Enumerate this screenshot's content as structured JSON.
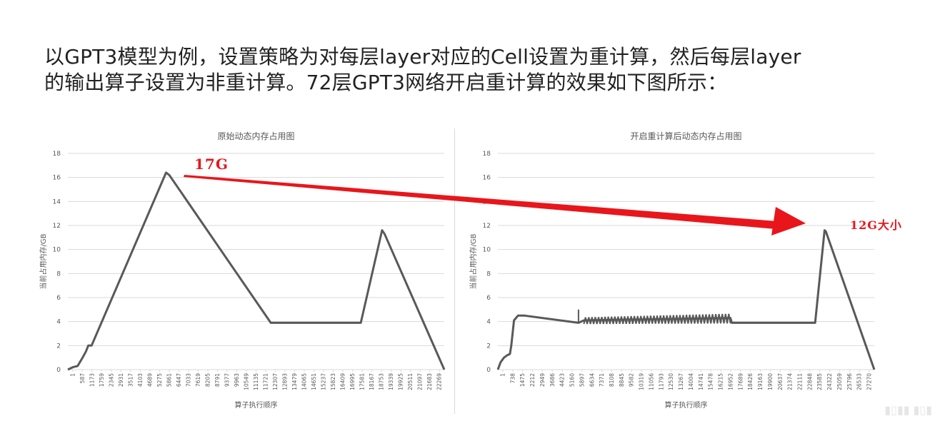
{
  "heading": {
    "line1": "以GPT3模型为例，设置策略为对每层layer对应的Cell设置为重计算，然后每层layer",
    "line2": "的输出算子设置为非重计算。72层GPT3网络开启重计算的效果如下图所示："
  },
  "annotations": {
    "left_label": "17G",
    "right_label": "12G大小",
    "arrow_color": "#e8161b"
  },
  "colors": {
    "line": "#595959",
    "grid": "#d9d9d9",
    "text": "#595959"
  },
  "chart_data": [
    {
      "type": "line",
      "title": "原始动态内存占用图",
      "xlabel": "算子执行顺序",
      "ylabel": "当前占用内存/GB",
      "ylim": [
        0,
        18
      ],
      "yticks": [
        0,
        2,
        4,
        6,
        8,
        10,
        12,
        14,
        16,
        18
      ],
      "grid": true,
      "xlim": [
        1,
        23000
      ],
      "xticks": [
        "1",
        "587",
        "1173",
        "1759",
        "2345",
        "2931",
        "3517",
        "4103",
        "4689",
        "5275",
        "5861",
        "6447",
        "7033",
        "7619",
        "8205",
        "8791",
        "9377",
        "9963",
        "10549",
        "11135",
        "11721",
        "12307",
        "12893",
        "13479",
        "14065",
        "14651",
        "15237",
        "15823",
        "16409",
        "16995",
        "17581",
        "18167",
        "18753",
        "19339",
        "19925",
        "20511",
        "21097",
        "21683",
        "22269"
      ],
      "series": [
        {
          "x": [
            1,
            300,
            600,
            900,
            1100,
            1250,
            1450,
            6000,
            6200,
            12400,
            17900,
            19200,
            19350,
            23000
          ],
          "y": [
            0,
            0.2,
            0.3,
            1.0,
            1.5,
            2.0,
            2.0,
            16.4,
            16.2,
            3.9,
            3.9,
            11.6,
            11.3,
            0
          ]
        }
      ]
    },
    {
      "type": "line",
      "title": "开启重计算后动态内存占用图",
      "xlabel": "算子执行顺序",
      "ylabel": "当前占用内存/GB",
      "ylim": [
        0,
        18
      ],
      "yticks": [
        0,
        2,
        4,
        6,
        8,
        10,
        12,
        14,
        16,
        18
      ],
      "grid": true,
      "xlim": [
        1,
        28000
      ],
      "xticks": [
        "1",
        "738",
        "1475",
        "2212",
        "2949",
        "3686",
        "4423",
        "5160",
        "5897",
        "6634",
        "7371",
        "8108",
        "8845",
        "9582",
        "10319",
        "11056",
        "11793",
        "12530",
        "13267",
        "14004",
        "14741",
        "15478",
        "16215",
        "16952",
        "17689",
        "18426",
        "19163",
        "19900",
        "20637",
        "21374",
        "22111",
        "22848",
        "23585",
        "24322",
        "25059",
        "25796",
        "26533",
        "27270"
      ],
      "series": [
        {
          "x": [
            1,
            200,
            450,
            700,
            900,
            1000,
            1200,
            1500,
            2000,
            6000,
            6400,
            17300,
            17400,
            23600,
            24300,
            24400,
            28000
          ],
          "y": [
            0,
            0.6,
            1.0,
            1.2,
            1.3,
            2.0,
            4.1,
            4.5,
            4.5,
            3.9,
            4.1,
            4.3,
            3.9,
            3.9,
            11.6,
            11.5,
            0
          ]
        }
      ],
      "oscillation": {
        "x_start": 6400,
        "x_end": 17300,
        "y_low": 3.8,
        "y_high": 4.6
      },
      "spike": {
        "x": 6000,
        "y_from": 3.9,
        "y_to": 5.0
      }
    }
  ]
}
